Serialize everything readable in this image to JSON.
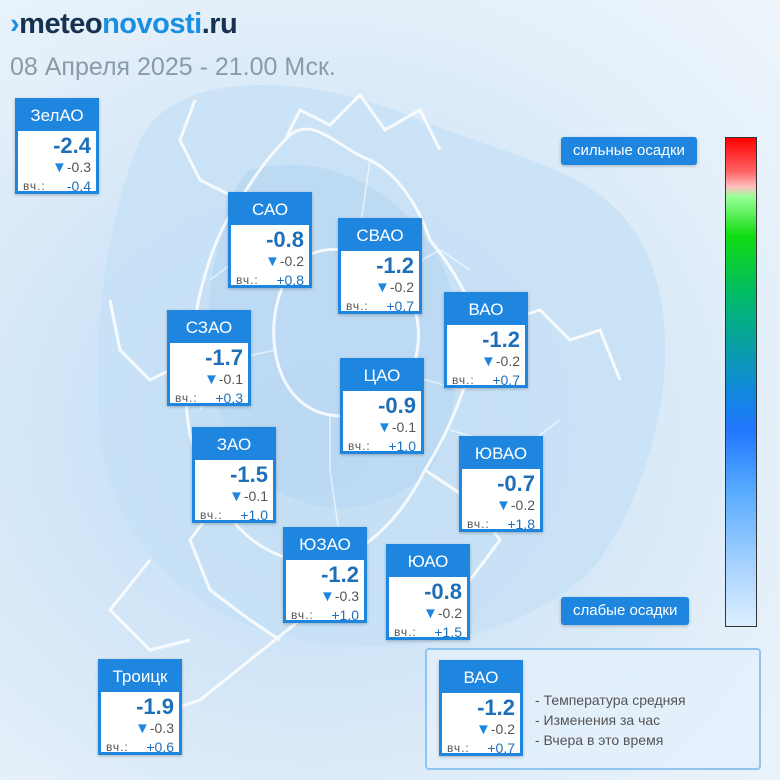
{
  "header": {
    "logo_mark": "›",
    "logo_part1": "meteo",
    "logo_part2": "novosti",
    "logo_part3": ".ru",
    "date_line": "08 Апреля 2025 - 21.00 Мск."
  },
  "scale": {
    "top_label": "сильные осадки",
    "bottom_label": "слабые осадки"
  },
  "districts": {
    "zelao": {
      "name": "ЗелАО",
      "temp": "-2.4",
      "change": "-0.3",
      "yesterday_label": "вч.:",
      "yesterday": "-0.4"
    },
    "sao": {
      "name": "САО",
      "temp": "-0.8",
      "change": "-0.2",
      "yesterday_label": "вч.:",
      "yesterday": "+0.8"
    },
    "svao": {
      "name": "СВАО",
      "temp": "-1.2",
      "change": "-0.2",
      "yesterday_label": "вч.:",
      "yesterday": "+0.7"
    },
    "vao": {
      "name": "ВАО",
      "temp": "-1.2",
      "change": "-0.2",
      "yesterday_label": "вч.:",
      "yesterday": "+0.7"
    },
    "szao": {
      "name": "СЗАО",
      "temp": "-1.7",
      "change": "-0.1",
      "yesterday_label": "вч.:",
      "yesterday": "+0.3"
    },
    "cao": {
      "name": "ЦАО",
      "temp": "-0.9",
      "change": "-0.1",
      "yesterday_label": "вч.:",
      "yesterday": "+1.0"
    },
    "zao": {
      "name": "ЗАО",
      "temp": "-1.5",
      "change": "-0.1",
      "yesterday_label": "вч.:",
      "yesterday": "+1.0"
    },
    "yuvao": {
      "name": "ЮВАО",
      "temp": "-0.7",
      "change": "-0.2",
      "yesterday_label": "вч.:",
      "yesterday": "+1.8"
    },
    "yuzao": {
      "name": "ЮЗАО",
      "temp": "-1.2",
      "change": "-0.3",
      "yesterday_label": "вч.:",
      "yesterday": "+1.0"
    },
    "yuao": {
      "name": "ЮАО",
      "temp": "-0.8",
      "change": "-0.2",
      "yesterday_label": "вч.:",
      "yesterday": "+1.5"
    },
    "troitsk": {
      "name": "Троицк",
      "temp": "-1.9",
      "change": "-0.3",
      "yesterday_label": "вч.:",
      "yesterday": "+0.6"
    }
  },
  "legend": {
    "sample": {
      "name": "ВАО",
      "temp": "-1.2",
      "change": "-0.2",
      "yesterday_label": "вч.:",
      "yesterday": "+0.7"
    },
    "line1": "- Температура средняя",
    "line2": "- Изменения за час",
    "line3": "- Вчера в это время"
  },
  "colors": {
    "accent": "#1f86e0",
    "value_text": "#1f6fb8"
  },
  "icons": {
    "change_arrow": "down-triangle-icon"
  }
}
